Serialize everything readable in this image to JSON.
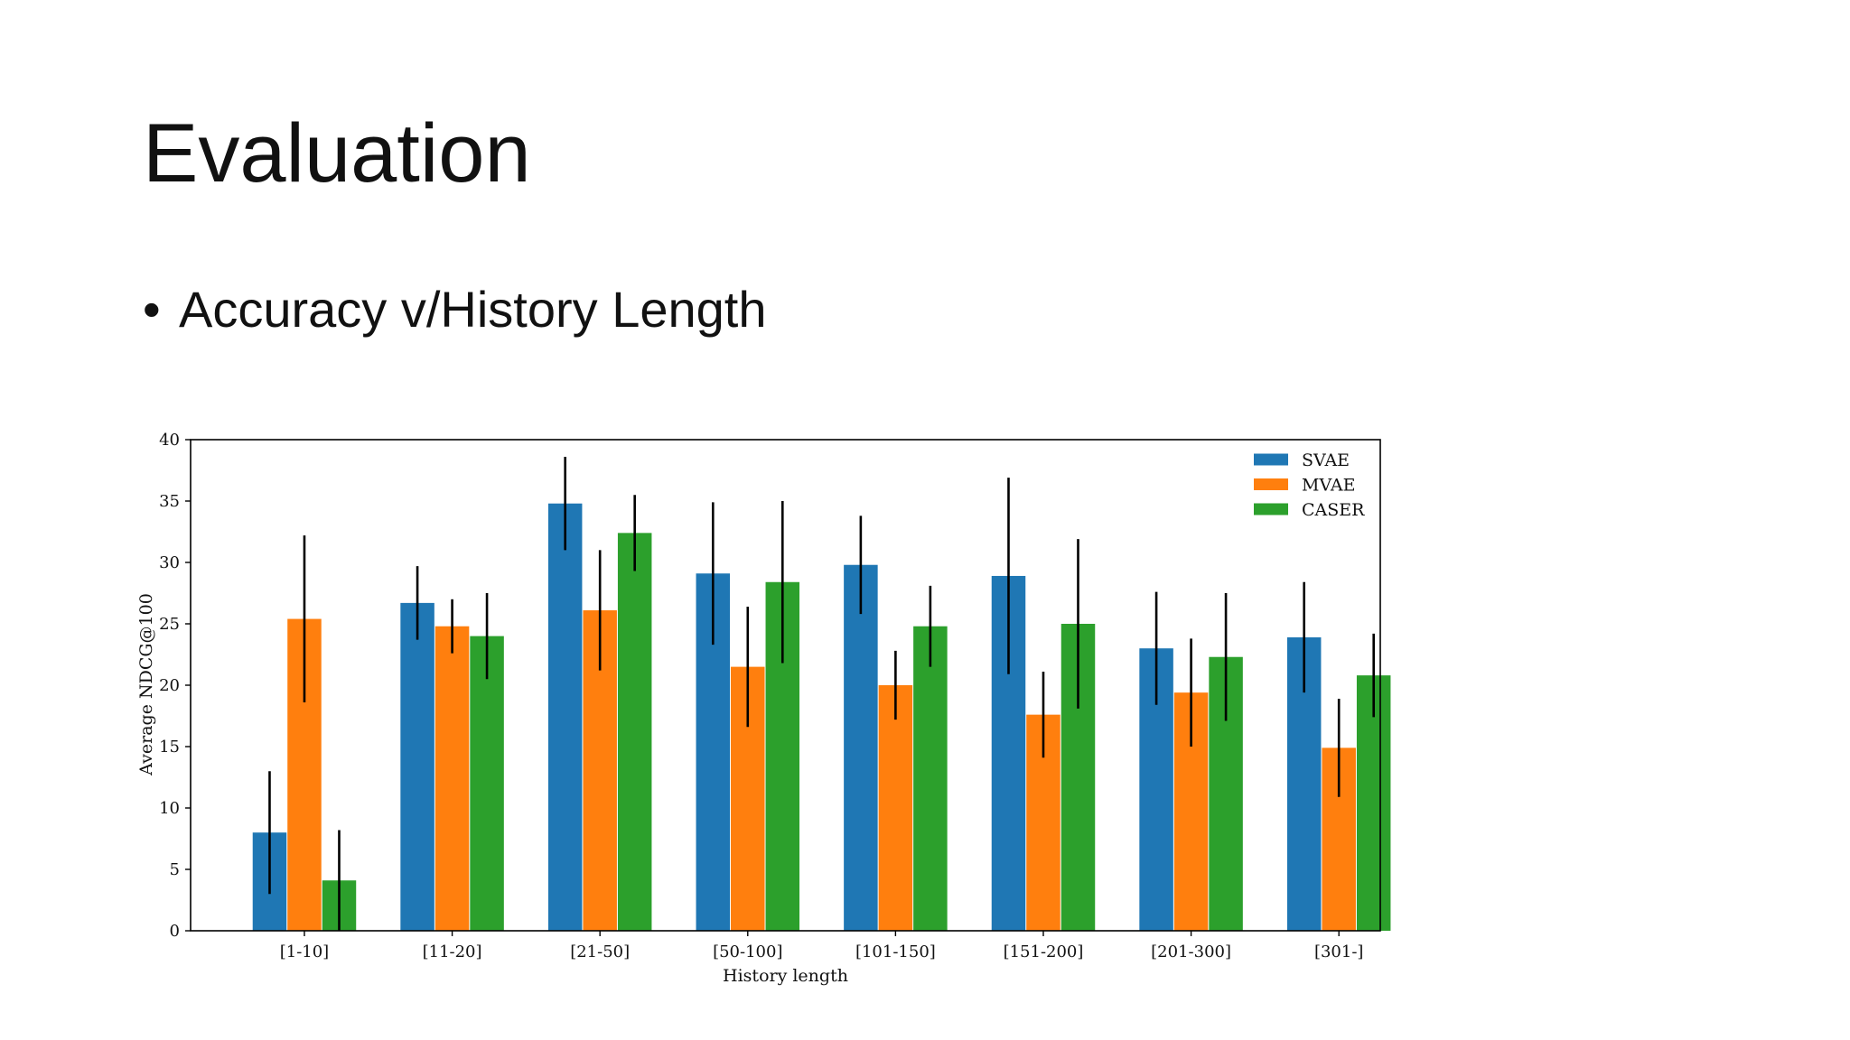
{
  "slide": {
    "title": "Evaluation",
    "bullet_marker": "•",
    "bullet": "Accuracy v/History Length"
  },
  "chart_data": {
    "type": "bar",
    "categories": [
      "[1-10]",
      "[11-20]",
      "[21-50]",
      "[50-100]",
      "[101-150]",
      "[151-200]",
      "[201-300]",
      "[301-]"
    ],
    "series": [
      {
        "name": "SVAE",
        "color": "#1f77b4",
        "values": [
          8.0,
          26.7,
          34.8,
          29.1,
          29.8,
          28.9,
          23.0,
          23.9
        ],
        "error": [
          5.0,
          3.0,
          3.8,
          5.8,
          4.0,
          8.0,
          4.6,
          4.5
        ]
      },
      {
        "name": "MVAE",
        "color": "#ff7f0e",
        "values": [
          25.4,
          24.8,
          26.1,
          21.5,
          20.0,
          17.6,
          19.4,
          14.9
        ],
        "error": [
          6.8,
          2.2,
          4.9,
          4.9,
          2.8,
          3.5,
          4.4,
          4.0
        ]
      },
      {
        "name": "CASER",
        "color": "#2ca02c",
        "values": [
          4.1,
          24.0,
          32.4,
          28.4,
          24.8,
          25.0,
          22.3,
          20.8
        ],
        "error": [
          4.1,
          3.5,
          3.1,
          6.6,
          3.3,
          6.9,
          5.2,
          3.4
        ]
      }
    ],
    "xlabel": "History length",
    "ylabel": "Average NDCG@100",
    "ylim": [
      0,
      40
    ],
    "yticks": [
      0,
      5,
      10,
      15,
      20,
      25,
      30,
      35,
      40
    ],
    "legend": "top-right",
    "grid": false
  }
}
